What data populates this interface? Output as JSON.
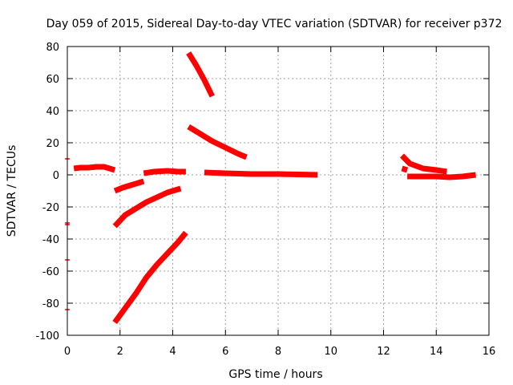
{
  "chart_data": {
    "type": "line",
    "title": "Day 059 of 2015, Sidereal Day-to-day VTEC variation (SDTVAR) for receiver p372",
    "xlabel": "GPS time / hours",
    "ylabel": "SDTVAR / TECUs",
    "xlim": [
      0,
      16
    ],
    "ylim": [
      -100,
      80
    ],
    "xticks": [
      "0",
      "2",
      "4",
      "6",
      "8",
      "10",
      "12",
      "14",
      "16"
    ],
    "yticks": [
      "-100",
      "-80",
      "-60",
      "-40",
      "-20",
      "0",
      "20",
      "40",
      "60",
      "80"
    ],
    "grid": true,
    "series_color": "#ff0000",
    "series": [
      {
        "x": [
          0.25,
          0.5,
          0.8,
          1.1,
          1.4,
          1.6,
          1.8
        ],
        "y": [
          4,
          4.5,
          4.5,
          5,
          5,
          4,
          3
        ]
      },
      {
        "x": [
          1.8,
          2.1,
          2.4,
          2.7,
          2.9
        ],
        "y": [
          -10,
          -8,
          -6.5,
          -5,
          -4
        ]
      },
      {
        "x": [
          1.8,
          2.2,
          2.6,
          3.0,
          3.4,
          3.8,
          4.1,
          4.3
        ],
        "y": [
          -32,
          -25,
          -21,
          -17,
          -14,
          -11,
          -9.5,
          -8.5
        ]
      },
      {
        "x": [
          1.8,
          2.2,
          2.6,
          3.0,
          3.4,
          3.8,
          4.2,
          4.5
        ],
        "y": [
          -92,
          -83,
          -74,
          -64,
          -56,
          -49,
          -42,
          -36
        ]
      },
      {
        "x": [
          2.9,
          3.3,
          3.8,
          4.2,
          4.5
        ],
        "y": [
          1,
          2,
          2.5,
          2,
          2
        ]
      },
      {
        "x": [
          4.6,
          4.9,
          5.2,
          5.5
        ],
        "y": [
          76,
          68,
          59,
          49
        ]
      },
      {
        "x": [
          4.6,
          5.0,
          5.5,
          6.0,
          6.5,
          6.8
        ],
        "y": [
          30,
          26,
          21,
          17,
          13,
          11
        ]
      },
      {
        "x": [
          5.2,
          6.0,
          7.0,
          8.0,
          9.0,
          9.5
        ],
        "y": [
          1.5,
          1,
          0.5,
          0.5,
          0.2,
          0
        ]
      },
      {
        "x": [
          12.7,
          13.0,
          13.5,
          14.0,
          14.4
        ],
        "y": [
          12,
          7,
          4,
          3,
          2
        ]
      },
      {
        "x": [
          12.7,
          12.9
        ],
        "y": [
          4,
          3
        ]
      },
      {
        "x": [
          12.9,
          13.5,
          14.0,
          14.5,
          15.0,
          15.5
        ],
        "y": [
          -1,
          -1,
          -1,
          -1.5,
          -1,
          0
        ]
      }
    ],
    "markers": [
      {
        "x": 0,
        "y": 10
      },
      {
        "x": 0,
        "y": -30
      },
      {
        "x": 0,
        "y": -31
      },
      {
        "x": 0,
        "y": -53
      },
      {
        "x": 0,
        "y": -84
      }
    ]
  }
}
